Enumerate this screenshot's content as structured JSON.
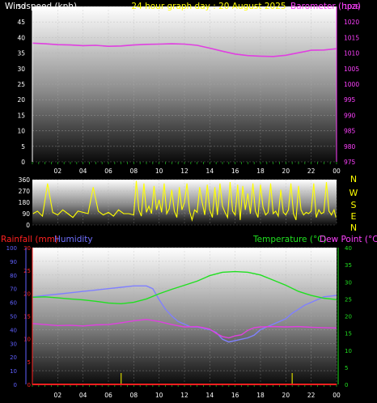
{
  "chart_data": [
    {
      "type": "line",
      "title": "24 hour graph day : 20 August 2025",
      "ylabel_left": "Windspeed (kph)",
      "ylabel_right": "Barometer (hpa)",
      "x_ticks": [
        "02",
        "04",
        "06",
        "08",
        "10",
        "12",
        "14",
        "16",
        "18",
        "20",
        "22",
        "00"
      ],
      "x_range": [
        0,
        24
      ],
      "ylim_left": [
        0,
        50
      ],
      "yticks_left": [
        "0",
        "5",
        "10",
        "15",
        "20",
        "25",
        "30",
        "35",
        "40",
        "45",
        "50"
      ],
      "ylim_right": [
        975,
        1025
      ],
      "yticks_right": [
        "975",
        "980",
        "985",
        "990",
        "995",
        "1000",
        "1005",
        "1010",
        "1015",
        "1020",
        "1025"
      ],
      "series": [
        {
          "axis": "right",
          "color": "#e040e0",
          "x": [
            0,
            1,
            2,
            3,
            4,
            5,
            6,
            7,
            8,
            9,
            10,
            11,
            12,
            13,
            14,
            15,
            16,
            17,
            18,
            19,
            20,
            21,
            22,
            23,
            24
          ],
          "values": [
            1013.2,
            1013.0,
            1012.7,
            1012.6,
            1012.4,
            1012.5,
            1012.2,
            1012.3,
            1012.6,
            1012.8,
            1012.9,
            1013.0,
            1012.9,
            1012.5,
            1011.6,
            1010.6,
            1009.7,
            1009.2,
            1009.0,
            1008.9,
            1009.3,
            1010.1,
            1010.9,
            1011.0,
            1011.4
          ]
        }
      ]
    },
    {
      "type": "line",
      "side_labels": [
        "N",
        "W",
        "S",
        "E",
        "N"
      ],
      "x_range": [
        0,
        24
      ],
      "ylim": [
        0,
        360
      ],
      "yticks": [
        "0",
        "90",
        "180",
        "270",
        "360"
      ],
      "series": [
        {
          "color": "#ffff00",
          "x": [
            0.05,
            0.4,
            0.8,
            1.2,
            1.6,
            2.0,
            2.4,
            2.8,
            3.2,
            3.6,
            4.0,
            4.4,
            4.8,
            5.2,
            5.6,
            6.0,
            6.4,
            6.8,
            7.2,
            7.6,
            8.0,
            8.2,
            8.4,
            8.6,
            8.8,
            9.0,
            9.2,
            9.4,
            9.6,
            9.8,
            10.0,
            10.2,
            10.4,
            10.6,
            10.8,
            11.0,
            11.2,
            11.4,
            11.6,
            11.8,
            12.0,
            12.2,
            12.4,
            12.6,
            12.8,
            13.0,
            13.2,
            13.4,
            13.6,
            13.8,
            14.0,
            14.2,
            14.4,
            14.6,
            14.8,
            15.0,
            15.2,
            15.4,
            15.6,
            15.8,
            16.0,
            16.2,
            16.4,
            16.6,
            16.8,
            17.0,
            17.2,
            17.4,
            17.6,
            17.8,
            18.0,
            18.2,
            18.4,
            18.6,
            18.8,
            19.0,
            19.2,
            19.4,
            19.6,
            19.8,
            20.0,
            20.2,
            20.4,
            20.6,
            20.8,
            21.0,
            21.2,
            21.4,
            21.6,
            21.8,
            22.0,
            22.2,
            22.4,
            22.6,
            22.8,
            23.0,
            23.2,
            23.4,
            23.6,
            23.8,
            23.95
          ],
          "values": [
            90,
            110,
            70,
            330,
            100,
            80,
            120,
            90,
            60,
            110,
            100,
            90,
            300,
            110,
            80,
            100,
            70,
            120,
            90,
            90,
            80,
            350,
            120,
            70,
            330,
            100,
            150,
            90,
            310,
            120,
            200,
            100,
            330,
            90,
            130,
            280,
            110,
            60,
            300,
            120,
            180,
            330,
            110,
            40,
            120,
            100,
            300,
            180,
            80,
            320,
            120,
            60,
            300,
            80,
            330,
            150,
            100,
            60,
            340,
            110,
            80,
            320,
            40,
            310,
            120,
            250,
            90,
            330,
            110,
            60,
            320,
            140,
            80,
            100,
            330,
            90,
            110,
            70,
            280,
            100,
            80,
            120,
            330,
            90,
            40,
            310,
            120,
            80,
            100,
            90,
            110,
            330,
            60,
            120,
            90,
            100,
            340,
            110,
            80,
            120,
            60
          ]
        }
      ]
    },
    {
      "type": "line",
      "ylabel_rain": "Rainfall (mm)",
      "ylabel_hum": "Humidity",
      "ylabel_temp": "Temperature (°C)",
      "ylabel_dew": "Dew Point (°C)",
      "x_ticks": [
        "02",
        "04",
        "06",
        "08",
        "10",
        "12",
        "14",
        "16",
        "18",
        "20",
        "22",
        "00"
      ],
      "x_range": [
        0,
        24
      ],
      "ylim_humidity": [
        0,
        100
      ],
      "yticks_humidity": [
        "0",
        "10",
        "20",
        "30",
        "40",
        "50",
        "60",
        "70",
        "80",
        "90",
        "100"
      ],
      "ylim_rain": [
        0,
        30
      ],
      "yticks_rain": [
        "0",
        "5",
        "10",
        "15",
        "20",
        "25",
        "30"
      ],
      "ylim_temp": [
        0,
        40
      ],
      "yticks_temp": [
        "0",
        "5",
        "10",
        "15",
        "20",
        "25",
        "30",
        "35",
        "40"
      ],
      "series": [
        {
          "name": "Humidity",
          "axis": "humidity",
          "color": "#8080ff",
          "x": [
            0,
            1,
            2,
            3,
            4,
            5,
            6,
            7,
            8,
            9,
            9.5,
            10,
            10.5,
            11,
            11.5,
            12,
            12.5,
            13,
            13.5,
            14,
            14.5,
            15,
            15.5,
            16,
            16.5,
            17,
            17.5,
            18,
            18.5,
            19,
            19.5,
            20,
            20.5,
            21,
            21.5,
            22,
            22.5,
            23,
            24
          ],
          "values": [
            64,
            65,
            66,
            67,
            68,
            69,
            70,
            71,
            72,
            72,
            70,
            62,
            55,
            50,
            46,
            44,
            42,
            42,
            41,
            40,
            38,
            33,
            31,
            32,
            33,
            34,
            36,
            40,
            42,
            44,
            46,
            48,
            52,
            55,
            58,
            60,
            62,
            64,
            65
          ]
        },
        {
          "name": "Temperature (°C)",
          "axis": "temp",
          "color": "#20e020",
          "x": [
            0,
            1,
            2,
            3,
            4,
            5,
            6,
            7,
            8,
            9,
            10,
            11,
            12,
            13,
            14,
            15,
            16,
            17,
            18,
            19,
            20,
            21,
            22,
            23,
            24
          ],
          "values": [
            25.5,
            25.6,
            25.3,
            25.0,
            24.7,
            24.3,
            23.8,
            23.6,
            24.0,
            25.0,
            26.5,
            27.8,
            29.0,
            30.2,
            31.8,
            32.8,
            33.0,
            32.8,
            32.0,
            30.5,
            29.0,
            27.2,
            26.0,
            25.2,
            24.8
          ]
        },
        {
          "name": "Dew Point (°C)",
          "axis": "temp",
          "color": "#e040e0",
          "x": [
            0,
            1,
            2,
            3,
            4,
            5,
            6,
            7,
            8,
            9,
            10,
            11,
            12,
            13,
            13.5,
            14,
            14.5,
            15,
            15.5,
            16,
            16.5,
            17,
            17.5,
            18,
            19,
            20,
            21,
            22,
            23,
            24
          ],
          "values": [
            17.8,
            17.5,
            17.2,
            17.3,
            17.1,
            17.4,
            17.5,
            18.0,
            18.6,
            19.0,
            18.4,
            17.5,
            16.8,
            16.9,
            16.6,
            16.2,
            14.9,
            14.0,
            13.6,
            14.2,
            14.5,
            15.8,
            16.6,
            16.8,
            16.9,
            16.8,
            16.9,
            16.7,
            16.6,
            16.5
          ]
        },
        {
          "name": "Rainfall (mm)",
          "axis": "rain",
          "color": "#ff2020",
          "x": [
            0,
            24
          ],
          "values": [
            0,
            0
          ]
        }
      ],
      "rain_markers": {
        "color": "#c8c800",
        "x": [
          7.0,
          20.5
        ]
      }
    }
  ]
}
